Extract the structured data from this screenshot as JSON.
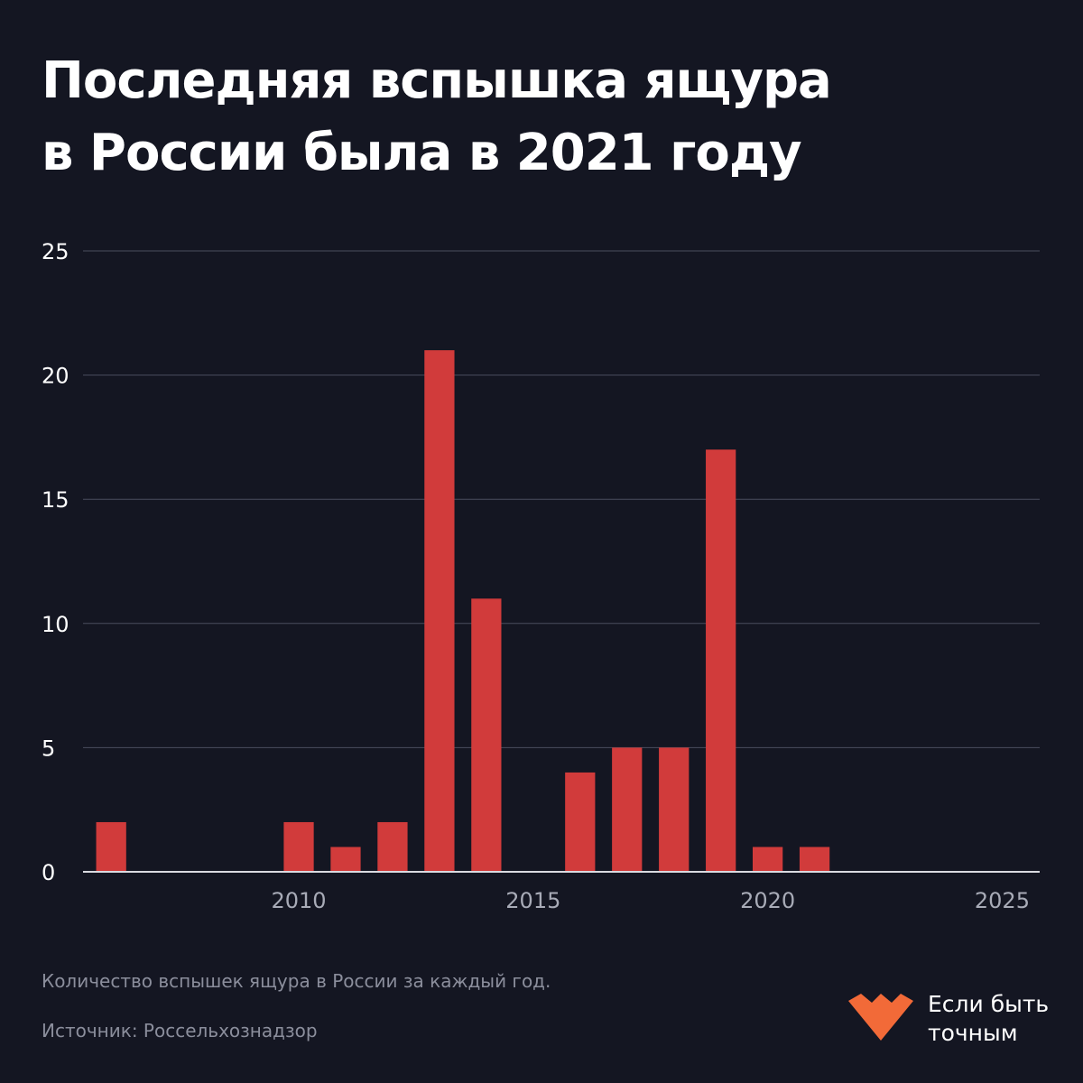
{
  "header": {
    "title_line1": "Последняя вспышка ящура",
    "title_line2": "в России была в 2021 году"
  },
  "footer": {
    "caption": "Количество вспышек ящура в России за каждый год.",
    "source": "Источник: Россельхознадзор"
  },
  "brand": {
    "line1": "Если быть",
    "line2": "точным",
    "color": "#f26a38"
  },
  "colors": {
    "background": "#141622",
    "bar": "#d13b3b",
    "grid": "#4a4d5e",
    "axis": "#d9dae0",
    "ytick": "#ffffff",
    "xtick": "#a8abb7"
  },
  "chart_data": {
    "type": "bar",
    "title": "Последняя вспышка ящура в России была в 2021 году",
    "xlabel": "",
    "ylabel": "",
    "x": [
      2006,
      2010,
      2011,
      2012,
      2013,
      2014,
      2016,
      2017,
      2018,
      2019,
      2020,
      2021
    ],
    "values": [
      2,
      2,
      1,
      2,
      21,
      11,
      4,
      5,
      5,
      17,
      1,
      1
    ],
    "xlim": [
      2005.4,
      2025.8
    ],
    "ylim": [
      0,
      25
    ],
    "yticks": [
      "0",
      "5",
      "10",
      "15",
      "20",
      "25"
    ],
    "xticks": [
      "2010",
      "2015",
      "2020",
      "2025"
    ],
    "grid": "horizontal",
    "legend": "none"
  }
}
